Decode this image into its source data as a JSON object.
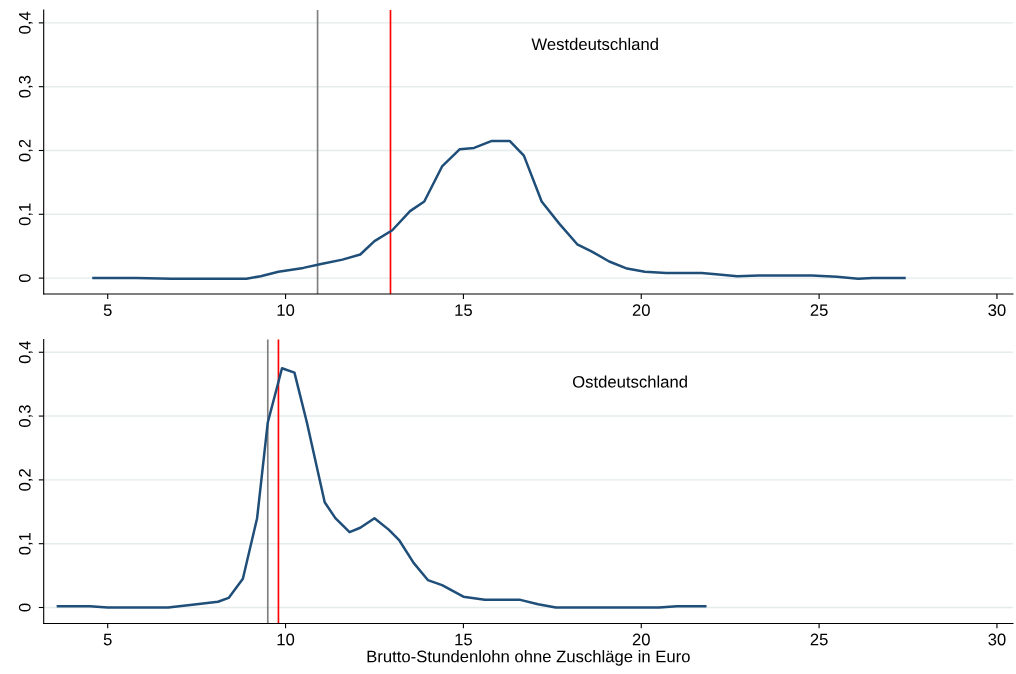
{
  "chart_data": [
    {
      "type": "line",
      "annotations": [
        "Westdeutschland"
      ],
      "series": [
        {
          "color": "#1f4e79",
          "x": [
            4.6,
            5.8,
            6.8,
            8.9,
            9.3,
            9.8,
            10.5,
            11.0,
            11.6,
            12.1,
            12.5,
            13.0,
            13.5,
            13.9,
            14.4,
            14.9,
            15.3,
            15.8,
            16.3,
            16.7,
            17.2,
            17.7,
            18.2,
            18.6,
            19.1,
            19.6,
            20.1,
            20.7,
            21.7,
            22.1,
            22.7,
            23.3,
            24.8,
            25.5,
            26.1,
            26.5,
            27.4
          ],
          "values": [
            0,
            0,
            -0.001,
            -0.001,
            0.003,
            0.01,
            0.016,
            0.022,
            0.029,
            0.037,
            0.058,
            0.075,
            0.105,
            0.12,
            0.175,
            0.202,
            0.204,
            0.215,
            0.215,
            0.192,
            0.12,
            0.085,
            0.053,
            0.042,
            0.026,
            0.015,
            0.01,
            0.008,
            0.008,
            0.006,
            0.003,
            0.004,
            0.004,
            0.002,
            -0.001,
            0,
            0
          ]
        }
      ],
      "ref_lines": [
        {
          "axis": "x",
          "value": 10.9,
          "color": "#7f7f7f"
        },
        {
          "axis": "x",
          "value": 12.95,
          "color": "#ff0000"
        }
      ],
      "xlim": [
        3.2,
        30.45
      ],
      "ylim": [
        -0.025,
        0.42
      ],
      "xticks": [
        5,
        10,
        15,
        20,
        25,
        30
      ],
      "yticks": [
        {
          "value": 0,
          "label": "0"
        },
        {
          "value": 0.1,
          "label": "0,1"
        },
        {
          "value": 0.2,
          "label": "0,2"
        },
        {
          "value": 0.3,
          "label": "0,3"
        },
        {
          "value": 0.4,
          "label": "0,4"
        }
      ],
      "grid": "y",
      "marker": "none",
      "line_style": "solid"
    },
    {
      "type": "line",
      "xlabel": "Brutto-Stundenlohn ohne Zuschläge in Euro",
      "annotations": [
        "Ostdeutschland"
      ],
      "series": [
        {
          "color": "#1f4e79",
          "x": [
            3.6,
            4.5,
            5.0,
            6.7,
            7.5,
            8.1,
            8.4,
            8.8,
            9.2,
            9.5,
            9.9,
            10.25,
            10.6,
            11.1,
            11.4,
            11.8,
            12.1,
            12.5,
            12.9,
            13.2,
            13.6,
            14.0,
            14.4,
            15.0,
            15.6,
            16.6,
            17.1,
            17.6,
            20.5,
            21.0,
            21.8
          ],
          "values": [
            0.002,
            0.002,
            0,
            0,
            0.005,
            0.009,
            0.015,
            0.045,
            0.14,
            0.29,
            0.375,
            0.368,
            0.29,
            0.165,
            0.14,
            0.118,
            0.125,
            0.14,
            0.122,
            0.105,
            0.07,
            0.043,
            0.035,
            0.017,
            0.012,
            0.012,
            0.005,
            0,
            0,
            0.002,
            0.002
          ]
        }
      ],
      "ref_lines": [
        {
          "axis": "x",
          "value": 9.5,
          "color": "#7f7f7f"
        },
        {
          "axis": "x",
          "value": 9.8,
          "color": "#ff0000"
        }
      ],
      "xlim": [
        3.2,
        30.45
      ],
      "ylim": [
        -0.025,
        0.42
      ],
      "xticks": [
        5,
        10,
        15,
        20,
        25,
        30
      ],
      "yticks": [
        {
          "value": 0,
          "label": "0"
        },
        {
          "value": 0.1,
          "label": "0,1"
        },
        {
          "value": 0.2,
          "label": "0,2"
        },
        {
          "value": 0.3,
          "label": "0,3"
        },
        {
          "value": 0.4,
          "label": "0,4"
        }
      ],
      "grid": "y",
      "marker": "none",
      "line_style": "solid"
    }
  ]
}
